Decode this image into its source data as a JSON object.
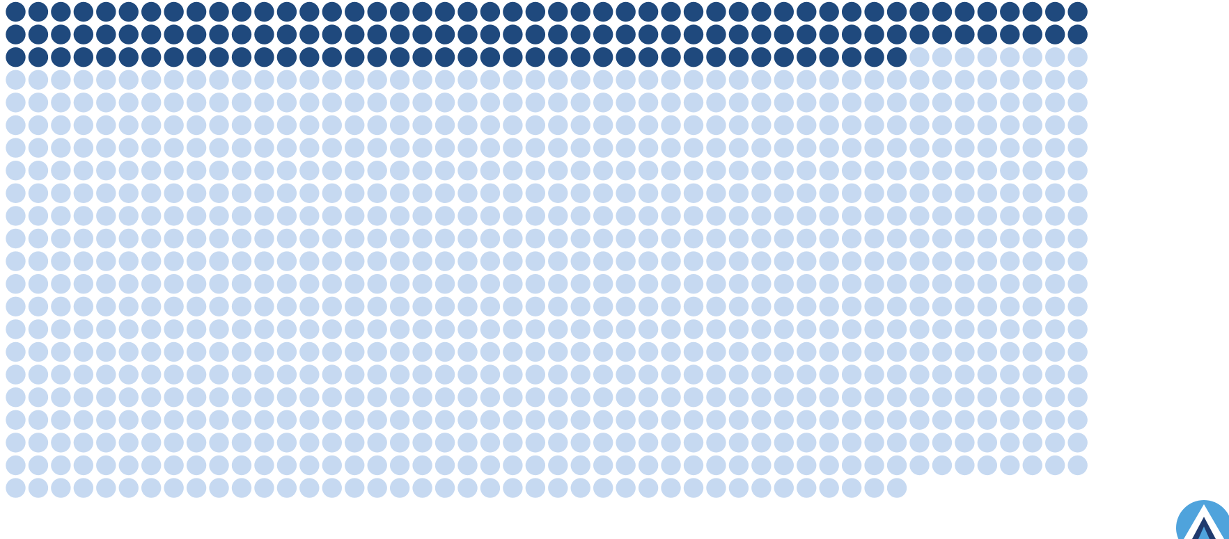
{
  "chart_data": {
    "type": "waffle",
    "columns": 48,
    "total": 1048,
    "filled": 136,
    "grid": false,
    "colors": {
      "filled": "#1f497d",
      "empty": "#c6d9f1"
    }
  },
  "logo": {
    "icon": "brand-logo-icon",
    "colors": {
      "outer": "#4fa3dc",
      "inner": "#1f3a6e"
    }
  }
}
